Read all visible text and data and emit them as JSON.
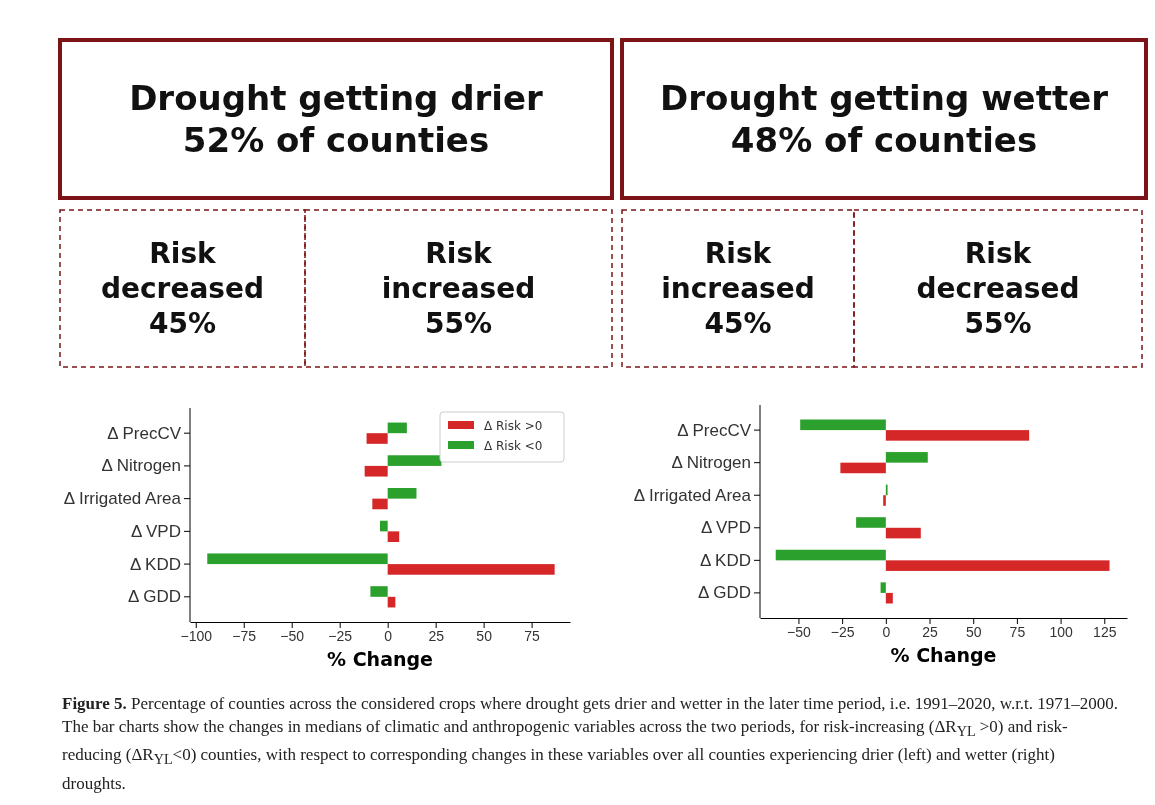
{
  "chart_data": [
    {
      "type": "other",
      "annotations": [
        "Drought getting drier\n52% of counties",
        "Drought getting wetter\n48% of counties",
        "Risk\ndecreased\n45%",
        "Risk\nincreased\n55%",
        "Risk\nincreased\n45%",
        "Risk\ndecreased\n55%"
      ]
    },
    {
      "type": "bar",
      "orientation": "horizontal",
      "categories": [
        "Δ PrecCV",
        "Δ Nitrogen",
        "Δ Irrigated Area",
        "Δ VPD",
        "Δ KDD",
        "Δ GDD"
      ],
      "xlabel": "% Change",
      "xlim": [
        -103,
        95
      ],
      "xticks": [
        {
          "value": -100,
          "label": "−100"
        },
        {
          "value": -75,
          "label": "−75"
        },
        {
          "value": -50,
          "label": "−50"
        },
        {
          "value": -25,
          "label": "−25"
        },
        0,
        25,
        50,
        75
      ],
      "legend": "top right",
      "grid": false,
      "series": [
        {
          "name": "Δ Risk >0",
          "color": "#d62728",
          "values": [
            -11,
            -12,
            -8,
            6,
            87,
            4
          ]
        },
        {
          "name": "Δ Risk <0",
          "color": "#2ca02c",
          "values": [
            10,
            28,
            15,
            -4,
            -94,
            -9
          ]
        }
      ]
    },
    {
      "type": "bar",
      "orientation": "horizontal",
      "categories": [
        "Δ PrecCV",
        "Δ Nitrogen",
        "Δ Irrigated Area",
        "Δ VPD",
        "Δ KDD",
        "Δ GDD"
      ],
      "xlabel": "% Change",
      "xlim": [
        -72,
        138
      ],
      "xticks": [
        {
          "value": -50,
          "label": "−50"
        },
        {
          "value": -25,
          "label": "−25"
        },
        0,
        25,
        50,
        75,
        100,
        125
      ],
      "legend": false,
      "grid": false,
      "series": [
        {
          "color": "#d62728",
          "values": [
            82,
            -26,
            -1.5,
            20,
            128,
            4
          ]
        },
        {
          "color": "#2ca02c",
          "values": [
            -49,
            24,
            1,
            -17,
            -63,
            -3
          ]
        }
      ]
    },
    {
      "type": "other",
      "annotations": [
        "Figure 5.",
        "Percentage of counties across the considered crops where drought gets drier and wetter in the later time period, i.e. 1991–2020, w.r.t. 1971–2000. The bar charts show the changes in medians of climatic and anthropogenic variables across the two periods, for risk-increasing (ΔR$_{YL}$ >0) and risk-reducing (ΔR$_{YL}$<0) counties, with respect to corresponding changes in these variables over all counties experiencing drier (left) and wetter (right) droughts."
      ]
    }
  ]
}
